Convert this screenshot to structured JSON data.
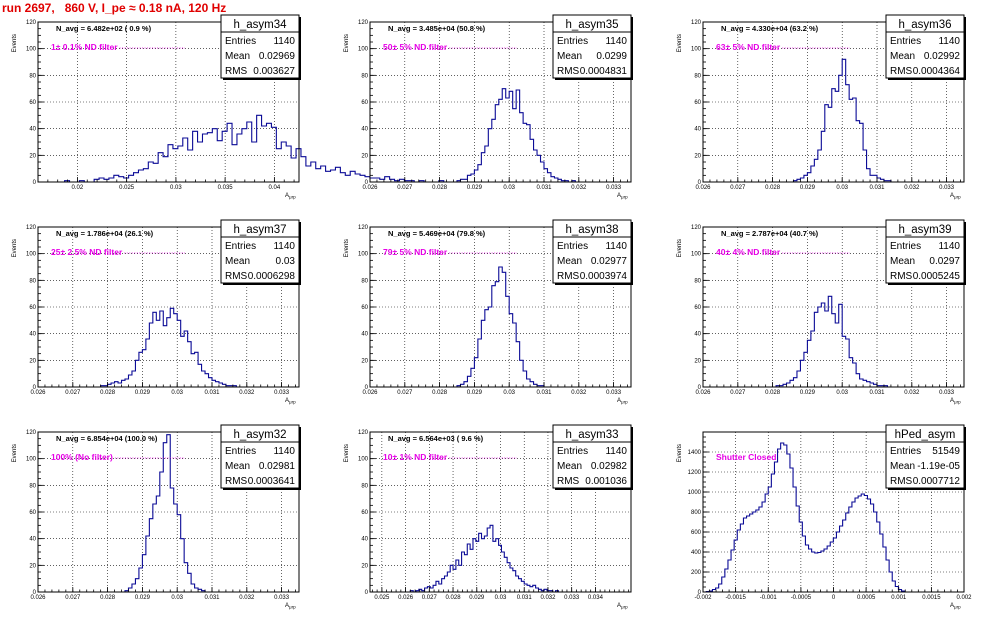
{
  "title": "run 2697,   860 V, I_pe ≈ 0.18 nA, 120 Hz",
  "stat_labels": {
    "entries": "Entries",
    "mean": "Mean",
    "rms": "RMS"
  },
  "chart_data": [
    {
      "type": "bar",
      "name": "h_asym34",
      "navg": "N_avg = 6.482e+02 ( 0.9 %)",
      "filter": "1± 0.1% ND filter",
      "entries": "1140",
      "mean": "0.02969",
      "rms": "0.003627",
      "xlim": [
        0.016,
        0.0425
      ],
      "ylim": [
        0,
        120
      ],
      "xticks": [
        "0.02",
        "0.025",
        "0.03",
        "0.035",
        "0.04"
      ],
      "xtick_values": [
        0.02,
        0.025,
        0.03,
        0.035,
        0.04
      ],
      "yticks": [
        0,
        20,
        40,
        60,
        80,
        100,
        120
      ],
      "xlabel": "A_μrp",
      "ylabel": "Events",
      "bin_start": 0.0182,
      "bin_width": 0.0005,
      "values": [
        0,
        1,
        0,
        0,
        1,
        0,
        0,
        2,
        3,
        2,
        3,
        5,
        4,
        3,
        5,
        7,
        9,
        10,
        15,
        14,
        22,
        19,
        28,
        25,
        27,
        33,
        24,
        38,
        30,
        36,
        37,
        40,
        31,
        38,
        44,
        28,
        36,
        40,
        45,
        30,
        50,
        42,
        44,
        41,
        25,
        30,
        27,
        18,
        25,
        19,
        12,
        15,
        10,
        12,
        8,
        9,
        11,
        7,
        5,
        8,
        6,
        5,
        4,
        3,
        3,
        2,
        4,
        2,
        1,
        2,
        1,
        1,
        0,
        1,
        0,
        0,
        0,
        1
      ]
    },
    {
      "type": "bar",
      "name": "h_asym35",
      "navg": "N_avg = 3.485e+04 (50.8 %)",
      "filter": "50± 5% ND filter",
      "entries": "1140",
      "mean": "0.0299",
      "rms": "0.0004831",
      "xlim": [
        0.026,
        0.0335
      ],
      "ylim": [
        0,
        120
      ],
      "xticks": [
        "0.026",
        "0.027",
        "0.028",
        "0.029",
        "0.03",
        "0.031",
        "0.032",
        "0.033"
      ],
      "xtick_values": [
        0.026,
        0.027,
        0.028,
        0.029,
        0.03,
        0.031,
        0.032,
        0.033
      ],
      "yticks": [
        0,
        20,
        40,
        60,
        80,
        100,
        120
      ],
      "xlabel": "A_μrp",
      "ylabel": "Events",
      "bin_start": 0.0285,
      "bin_width": 0.0001,
      "values": [
        1,
        2,
        2,
        5,
        6,
        9,
        13,
        22,
        27,
        40,
        47,
        58,
        62,
        70,
        63,
        68,
        55,
        69,
        52,
        44,
        43,
        32,
        24,
        20,
        15,
        10,
        7,
        4,
        3,
        2,
        1,
        1,
        0,
        1
      ]
    },
    {
      "type": "bar",
      "name": "h_asym36",
      "navg": "N_avg = 4.330e+04 (63.2 %)",
      "filter": "63± 5% ND filter",
      "entries": "1140",
      "mean": "0.02992",
      "rms": "0.0004364",
      "xlim": [
        0.026,
        0.0335
      ],
      "ylim": [
        0,
        120
      ],
      "xticks": [
        "0.026",
        "0.027",
        "0.028",
        "0.029",
        "0.03",
        "0.031",
        "0.032",
        "0.033"
      ],
      "xtick_values": [
        0.026,
        0.027,
        0.028,
        0.029,
        0.03,
        0.031,
        0.032,
        0.033
      ],
      "yticks": [
        0,
        20,
        40,
        60,
        80,
        100,
        120
      ],
      "xlabel": "A_μrp",
      "ylabel": "Events",
      "bin_start": 0.0286,
      "bin_width": 0.0001,
      "values": [
        1,
        2,
        3,
        5,
        7,
        12,
        17,
        24,
        38,
        58,
        56,
        70,
        68,
        80,
        92,
        73,
        62,
        63,
        46,
        44,
        24,
        10,
        5,
        5,
        3,
        2,
        1,
        1,
        0
      ]
    },
    {
      "type": "bar",
      "name": "h_asym37",
      "navg": "N_avg = 1.786e+04 (26.1 %)",
      "filter": "25± 2.5% ND filter",
      "entries": "1140",
      "mean": "0.03",
      "rms": "0.0006298",
      "xlim": [
        0.026,
        0.0335
      ],
      "ylim": [
        0,
        120
      ],
      "xticks": [
        "0.026",
        "0.027",
        "0.028",
        "0.029",
        "0.03",
        "0.031",
        "0.032",
        "0.033"
      ],
      "xtick_values": [
        0.026,
        0.027,
        0.028,
        0.029,
        0.03,
        0.031,
        0.032,
        0.033
      ],
      "yticks": [
        0,
        20,
        40,
        60,
        80,
        100,
        120
      ],
      "xlabel": "A_μrp",
      "ylabel": "Events",
      "bin_start": 0.0278,
      "bin_width": 0.0001,
      "values": [
        1,
        1,
        2,
        3,
        4,
        3,
        5,
        6,
        9,
        12,
        20,
        26,
        28,
        36,
        48,
        56,
        50,
        57,
        46,
        52,
        59,
        55,
        50,
        38,
        42,
        34,
        25,
        26,
        17,
        12,
        10,
        7,
        5,
        4,
        3,
        2,
        1,
        1,
        1
      ]
    },
    {
      "type": "bar",
      "name": "h_asym38",
      "navg": "N_avg = 5.469e+04 (79.8 %)",
      "filter": "79± 5% ND filter",
      "entries": "1140",
      "mean": "0.02977",
      "rms": "0.0003974",
      "xlim": [
        0.026,
        0.0335
      ],
      "ylim": [
        0,
        120
      ],
      "xticks": [
        "0.026",
        "0.027",
        "0.028",
        "0.029",
        "0.03",
        "0.031",
        "0.032",
        "0.033"
      ],
      "xtick_values": [
        0.026,
        0.027,
        0.028,
        0.029,
        0.03,
        0.031,
        0.032,
        0.033
      ],
      "yticks": [
        0,
        20,
        40,
        60,
        80,
        100,
        120
      ],
      "xlabel": "A_μrp",
      "ylabel": "Events",
      "bin_start": 0.0285,
      "bin_width": 0.0001,
      "values": [
        1,
        2,
        4,
        8,
        14,
        22,
        36,
        50,
        58,
        60,
        76,
        79,
        90,
        86,
        68,
        55,
        48,
        34,
        20,
        12,
        6,
        4,
        2,
        1,
        1,
        0
      ]
    },
    {
      "type": "bar",
      "name": "h_asym39",
      "navg": "N_avg = 2.787e+04 (40.7 %)",
      "filter": "40± 4% ND filter",
      "entries": "1140",
      "mean": "0.0297",
      "rms": "0.0005245",
      "xlim": [
        0.026,
        0.0335
      ],
      "ylim": [
        0,
        120
      ],
      "xticks": [
        "0.026",
        "0.027",
        "0.028",
        "0.029",
        "0.03",
        "0.031",
        "0.032",
        "0.033"
      ],
      "xtick_values": [
        0.026,
        0.027,
        0.028,
        0.029,
        0.03,
        0.031,
        0.032,
        0.033
      ],
      "yticks": [
        0,
        20,
        40,
        60,
        80,
        100,
        120
      ],
      "xlabel": "A_μrp",
      "ylabel": "Events",
      "bin_start": 0.0281,
      "bin_width": 0.0001,
      "values": [
        1,
        1,
        2,
        3,
        5,
        7,
        12,
        20,
        26,
        35,
        42,
        56,
        60,
        63,
        57,
        68,
        55,
        48,
        62,
        38,
        36,
        22,
        18,
        10,
        6,
        5,
        4,
        3,
        2,
        1,
        1,
        1
      ]
    },
    {
      "type": "bar",
      "name": "h_asym32",
      "navg": "N_avg = 6.854e+04 (100.0 %)",
      "filter": "100% (No filter)",
      "entries": "1140",
      "mean": "0.02981",
      "rms": "0.0003641",
      "xlim": [
        0.026,
        0.0335
      ],
      "ylim": [
        0,
        120
      ],
      "xticks": [
        "0.026",
        "0.027",
        "0.028",
        "0.029",
        "0.03",
        "0.031",
        "0.032",
        "0.033"
      ],
      "xtick_values": [
        0.026,
        0.027,
        0.028,
        0.029,
        0.03,
        0.031,
        0.032,
        0.033
      ],
      "yticks": [
        0,
        20,
        40,
        60,
        80,
        100,
        120
      ],
      "xlabel": "A_μrp",
      "ylabel": "Events",
      "bin_start": 0.0285,
      "bin_width": 0.0001,
      "values": [
        1,
        3,
        6,
        10,
        18,
        28,
        42,
        55,
        66,
        72,
        90,
        112,
        118,
        78,
        66,
        58,
        40,
        22,
        14,
        6,
        3,
        2,
        1,
        0
      ]
    },
    {
      "type": "bar",
      "name": "h_asym33",
      "navg": "N_avg = 6.564e+03 ( 9.6 %)",
      "filter": "10± 1% ND filter",
      "entries": "1140",
      "mean": "0.02982",
      "rms": "0.001036",
      "xlim": [
        0.0245,
        0.0355
      ],
      "ylim": [
        0,
        120
      ],
      "xticks": [
        "0.025",
        "0.026",
        "0.027",
        "0.028",
        "0.029",
        "0.03",
        "0.031",
        "0.032",
        "0.033",
        "0.034"
      ],
      "xtick_values": [
        0.025,
        0.026,
        0.027,
        0.028,
        0.029,
        0.03,
        0.031,
        0.032,
        0.033,
        0.034
      ],
      "yticks": [
        0,
        20,
        40,
        60,
        80,
        100,
        120
      ],
      "xlabel": "A_μrp",
      "ylabel": "Events",
      "bin_start": 0.0262,
      "bin_width": 0.00012,
      "values": [
        1,
        0,
        1,
        2,
        1,
        3,
        4,
        3,
        5,
        8,
        6,
        10,
        12,
        15,
        20,
        17,
        24,
        20,
        30,
        28,
        36,
        32,
        40,
        38,
        44,
        40,
        42,
        48,
        50,
        38,
        40,
        35,
        30,
        26,
        22,
        18,
        16,
        12,
        10,
        8,
        6,
        5,
        4,
        5,
        3,
        2,
        1,
        2,
        1,
        1,
        0,
        1
      ]
    },
    {
      "type": "bar",
      "name": "hPed_asym",
      "navg": "",
      "filter": "Shutter Closed",
      "entries": "51549",
      "mean": "-1.19e-05",
      "rms": "0.0007712",
      "xlim": [
        -0.002,
        0.002
      ],
      "ylim": [
        0,
        1600
      ],
      "xticks": [
        "-0.002",
        "-0.0015",
        "-0.001",
        "-0.0005",
        "0",
        "0.0005",
        "0.001",
        "0.0015",
        "0.002"
      ],
      "xtick_values": [
        -0.002,
        -0.0015,
        -0.001,
        -0.0005,
        0,
        0.0005,
        0.001,
        0.0015,
        0.002
      ],
      "yticks": [
        0,
        200,
        400,
        600,
        800,
        1000,
        1200,
        1400
      ],
      "xlabel": "A_μrp",
      "ylabel": "Events",
      "bin_start": -0.00195,
      "bin_width": 4.75e-05,
      "values": [
        5,
        10,
        25,
        40,
        80,
        150,
        230,
        320,
        420,
        520,
        620,
        680,
        740,
        760,
        780,
        800,
        820,
        850,
        900,
        980,
        1050,
        1180,
        1300,
        1430,
        1490,
        1470,
        1380,
        1240,
        1050,
        860,
        700,
        560,
        470,
        430,
        400,
        390,
        395,
        410,
        430,
        460,
        500,
        540,
        600,
        660,
        720,
        790,
        850,
        900,
        940,
        960,
        980,
        965,
        930,
        880,
        800,
        700,
        580,
        450,
        320,
        200,
        110,
        55,
        25,
        10
      ]
    }
  ]
}
